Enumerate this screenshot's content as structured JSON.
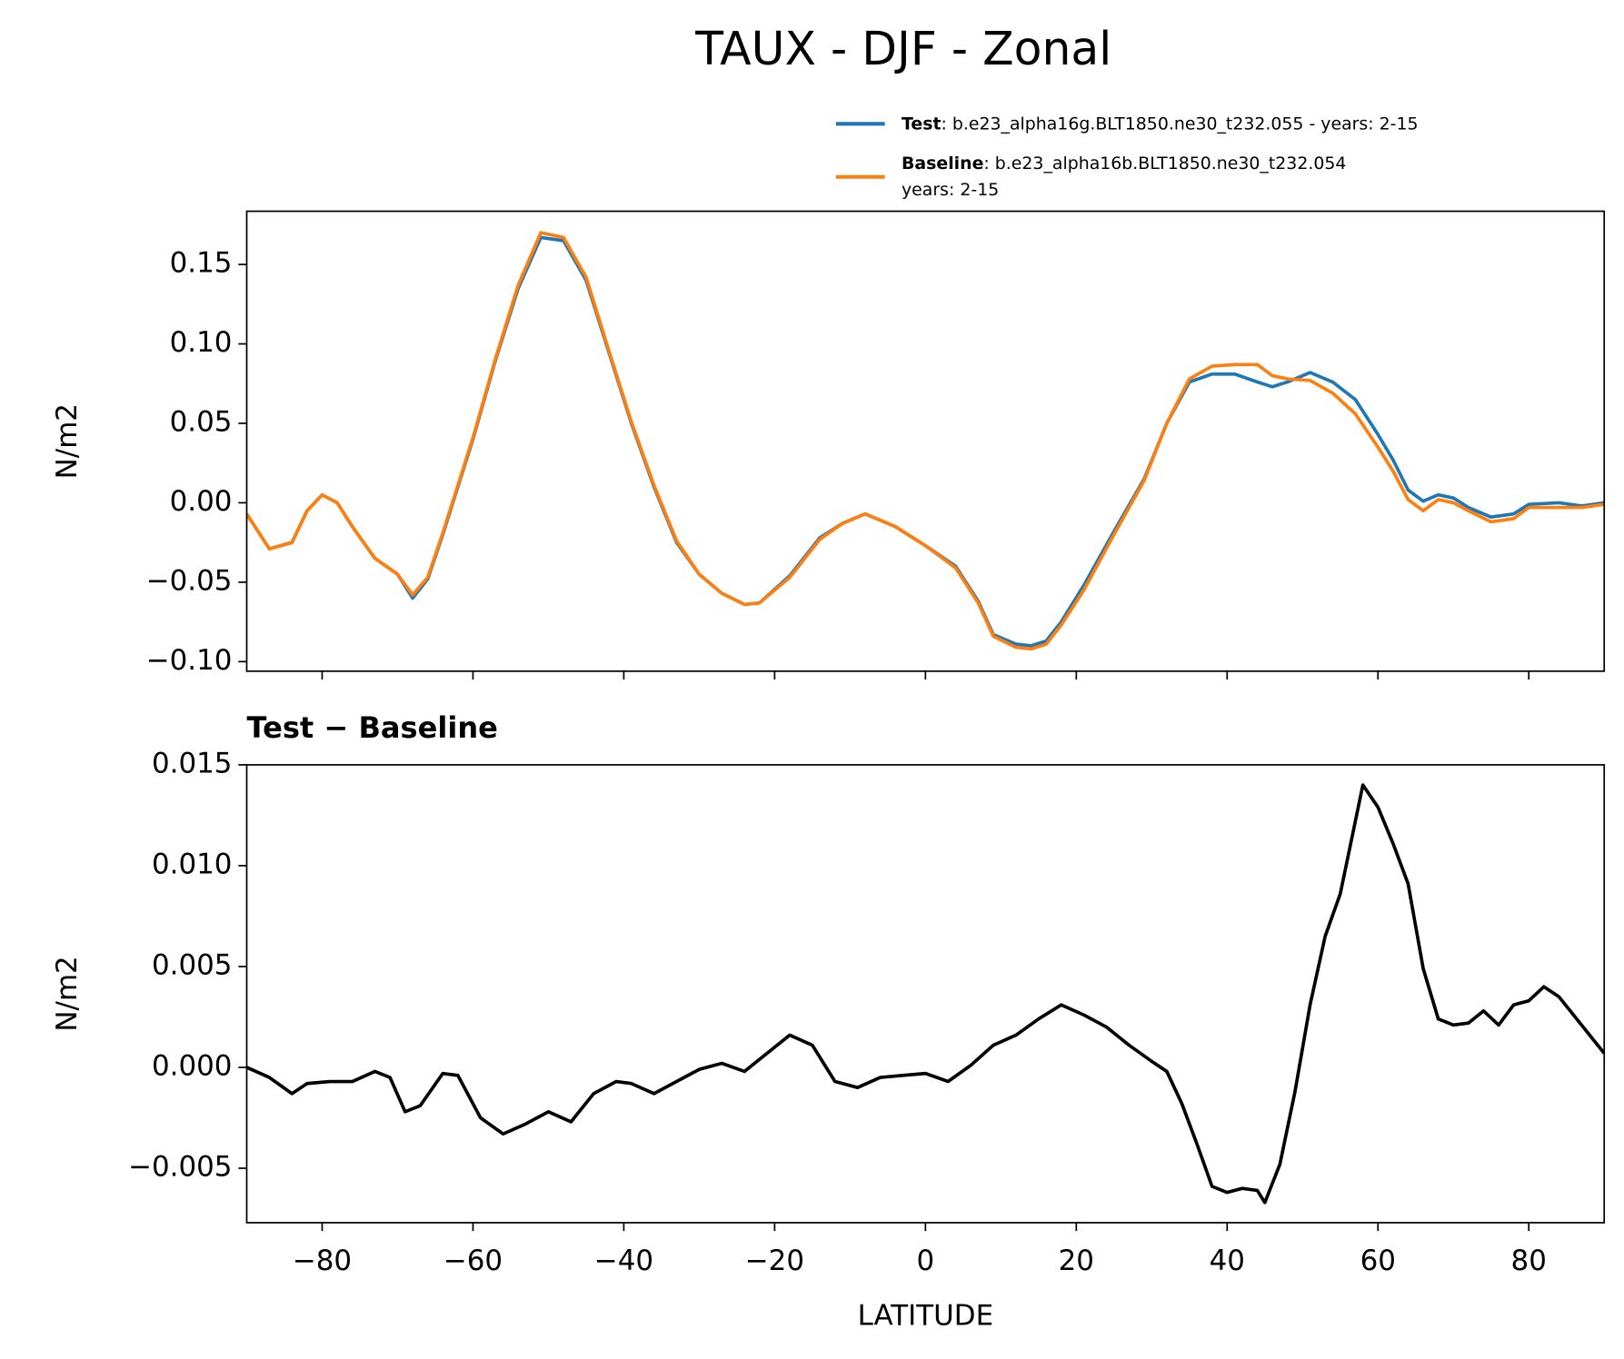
{
  "title": "TAUX - DJF - Zonal",
  "chart_data": [
    {
      "type": "line",
      "ylabel": "N/m2",
      "x": [
        -90,
        -87,
        -84,
        -82,
        -80,
        -78,
        -76,
        -73,
        -70,
        -68,
        -66,
        -64,
        -60,
        -57,
        -54,
        -51,
        -48,
        -45,
        -42,
        -39,
        -36,
        -33,
        -30,
        -27,
        -24,
        -22,
        -18,
        -14,
        -11,
        -8,
        -4,
        0,
        4,
        7,
        9,
        12,
        14,
        16,
        18,
        21,
        25,
        29,
        32,
        35,
        38,
        41,
        44,
        46,
        48,
        51,
        54,
        57,
        60,
        62,
        64,
        66,
        68,
        70,
        72,
        75,
        78,
        80,
        84,
        87,
        90
      ],
      "series": [
        {
          "name": "Test",
          "case": [
            ": b.e23_alpha16g.BLT1850.ne30_t232.055 - years: 2-15"
          ],
          "color": "#1f77b4",
          "values": [
            -0.007,
            -0.029,
            -0.025,
            -0.005,
            0.005,
            0.0,
            -0.015,
            -0.035,
            -0.045,
            -0.06,
            -0.048,
            -0.02,
            0.04,
            0.09,
            0.135,
            0.167,
            0.165,
            0.14,
            0.095,
            0.05,
            0.01,
            -0.025,
            -0.045,
            -0.057,
            -0.064,
            -0.063,
            -0.046,
            -0.022,
            -0.013,
            -0.007,
            -0.015,
            -0.027,
            -0.04,
            -0.062,
            -0.083,
            -0.089,
            -0.09,
            -0.087,
            -0.075,
            -0.052,
            -0.018,
            0.015,
            0.05,
            0.076,
            0.081,
            0.081,
            0.076,
            0.073,
            0.076,
            0.082,
            0.076,
            0.065,
            0.043,
            0.027,
            0.008,
            0.001,
            0.005,
            0.003,
            -0.003,
            -0.009,
            -0.007,
            -0.001,
            0.0,
            -0.002,
            0.0
          ]
        },
        {
          "name": "Baseline",
          "case": [
            ": b.e23_alpha16b.BLT1850.ne30_t232.054",
            "years: 2-15"
          ],
          "color": "#ff7f0e",
          "values": [
            -0.007,
            -0.029,
            -0.025,
            -0.005,
            0.005,
            0.0,
            -0.015,
            -0.035,
            -0.045,
            -0.058,
            -0.047,
            -0.019,
            0.041,
            0.091,
            0.137,
            0.17,
            0.167,
            0.142,
            0.096,
            0.051,
            0.011,
            -0.024,
            -0.045,
            -0.057,
            -0.064,
            -0.063,
            -0.047,
            -0.023,
            -0.013,
            -0.007,
            -0.015,
            -0.027,
            -0.041,
            -0.063,
            -0.084,
            -0.091,
            -0.092,
            -0.089,
            -0.077,
            -0.055,
            -0.02,
            0.014,
            0.05,
            0.078,
            0.086,
            0.087,
            0.087,
            0.08,
            0.078,
            0.077,
            0.069,
            0.056,
            0.035,
            0.02,
            0.002,
            -0.005,
            0.002,
            0.0,
            -0.005,
            -0.012,
            -0.01,
            -0.003,
            -0.003,
            -0.003,
            -0.001
          ]
        }
      ],
      "xlim": [
        -90,
        90
      ],
      "xticks": [
        -80,
        -60,
        -40,
        -20,
        0,
        20,
        40,
        60,
        80
      ],
      "ylim": [
        -0.106,
        0.1835
      ],
      "yticks": [
        {
          "value": -0.1,
          "label": "−0.10"
        },
        {
          "value": -0.05,
          "label": "−0.05"
        },
        {
          "value": 0.0,
          "label": "0.00"
        },
        {
          "value": 0.05,
          "label": "0.05"
        },
        {
          "value": 0.1,
          "label": "0.10"
        },
        0.15
      ]
    },
    {
      "type": "line",
      "title": "Test − Baseline",
      "ylabel": "N/m2",
      "xlabel": "LATITUDE",
      "color": "#000000",
      "x": [
        -90,
        -87,
        -84,
        -82,
        -79,
        -76,
        -73,
        -71,
        -69,
        -67,
        -64,
        -62,
        -59,
        -56,
        -53,
        -50,
        -47,
        -44,
        -41,
        -39,
        -36,
        -33,
        -30,
        -27,
        -24,
        -21,
        -18,
        -15,
        -12,
        -9,
        -6,
        -3,
        0,
        3,
        6,
        9,
        12,
        15,
        18,
        21,
        24,
        27,
        30,
        32,
        34,
        36,
        38,
        40,
        42,
        44,
        45,
        47,
        49,
        51,
        53,
        55,
        57,
        58,
        60,
        62,
        64,
        66,
        68,
        70,
        72,
        74,
        76,
        78,
        80,
        82,
        84,
        87,
        90
      ],
      "values": [
        0.0,
        -0.0005,
        -0.0013,
        -0.0008,
        -0.0007,
        -0.0007,
        -0.0002,
        -0.0005,
        -0.0022,
        -0.0019,
        -0.0003,
        -0.0004,
        -0.0025,
        -0.0033,
        -0.0028,
        -0.0022,
        -0.0027,
        -0.0013,
        -0.0007,
        -0.0008,
        -0.0013,
        -0.0007,
        -0.0001,
        0.0002,
        -0.0002,
        0.0007,
        0.0016,
        0.0011,
        -0.0007,
        -0.001,
        -0.0005,
        -0.0004,
        -0.0003,
        -0.0007,
        0.0001,
        0.0011,
        0.0016,
        0.0024,
        0.0031,
        0.0026,
        0.002,
        0.0011,
        0.0003,
        -0.0002,
        -0.0018,
        -0.0038,
        -0.0059,
        -0.0062,
        -0.006,
        -0.0061,
        -0.0067,
        -0.0048,
        -0.0012,
        0.0031,
        0.0065,
        0.0086,
        0.0122,
        0.014,
        0.0129,
        0.0111,
        0.0091,
        0.0049,
        0.0024,
        0.0021,
        0.0022,
        0.0028,
        0.0021,
        0.0031,
        0.0033,
        0.004,
        0.0035,
        0.0021,
        0.0007
      ],
      "xlim": [
        -90,
        90
      ],
      "xticks": [
        {
          "value": -80,
          "label": "−80"
        },
        {
          "value": -60,
          "label": "−60"
        },
        {
          "value": -40,
          "label": "−40"
        },
        {
          "value": -20,
          "label": "−20"
        },
        0,
        20,
        40,
        60,
        80
      ],
      "ylim": [
        -0.0077,
        0.015
      ],
      "yticks": [
        {
          "value": -0.005,
          "label": "−0.005"
        },
        {
          "value": 0.0,
          "label": "0.000"
        },
        0.005,
        {
          "value": 0.01,
          "label": "0.010"
        },
        0.015
      ]
    }
  ]
}
